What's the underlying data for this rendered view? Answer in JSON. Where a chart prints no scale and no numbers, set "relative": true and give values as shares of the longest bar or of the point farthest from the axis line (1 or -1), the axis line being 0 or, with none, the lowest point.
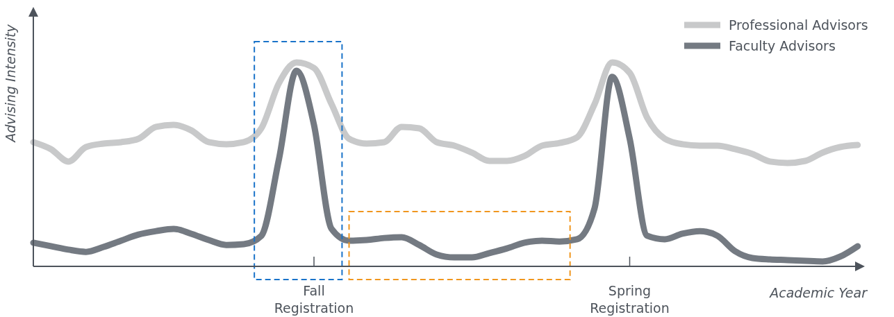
{
  "chart_data": {
    "type": "line",
    "relative": true,
    "xlabel": "Academic Year",
    "ylabel": "Advising Intensity",
    "legend": "top right",
    "line_style": "solid",
    "marker": "none",
    "grid": false,
    "tick_labels": "x",
    "categories": [
      null,
      null,
      null,
      null,
      null,
      null,
      null,
      null,
      null,
      null,
      null,
      null,
      null,
      null,
      null,
      null,
      "Fall Registration",
      null,
      null,
      null,
      null,
      null,
      null,
      null,
      null,
      null,
      null,
      null,
      null,
      null,
      null,
      null,
      null,
      null,
      "Spring Registration",
      null,
      null,
      null,
      null,
      null,
      null,
      null,
      null,
      null,
      null,
      null,
      null,
      null
    ],
    "series": [
      {
        "name": "Professional Advisors",
        "color": "#c8c9ca",
        "values": [
          0.609,
          0.575,
          0.514,
          0.585,
          0.602,
          0.609,
          0.626,
          0.684,
          0.694,
          0.667,
          0.609,
          0.599,
          0.609,
          0.677,
          0.898,
          1,
          0.973,
          0.796,
          0.626,
          0.602,
          0.609,
          0.684,
          0.677,
          0.609,
          0.592,
          0.558,
          0.517,
          0.517,
          0.541,
          0.592,
          0.605,
          0.633,
          0.796,
          1,
          0.949,
          0.728,
          0.626,
          0.599,
          0.592,
          0.592,
          0.575,
          0.551,
          0.514,
          0.507,
          0.517,
          0.558,
          0.585,
          0.595
        ]
      },
      {
        "name": "Faculty Advisors",
        "color": "#747a82",
        "values": [
          0.116,
          0.099,
          0.082,
          0.071,
          0.095,
          0.126,
          0.156,
          0.173,
          0.184,
          0.16,
          0.129,
          0.105,
          0.109,
          0.15,
          0.524,
          0.959,
          0.694,
          0.184,
          0.126,
          0.129,
          0.139,
          0.143,
          0.105,
          0.058,
          0.044,
          0.044,
          0.065,
          0.088,
          0.116,
          0.126,
          0.122,
          0.133,
          0.286,
          0.929,
          0.626,
          0.15,
          0.133,
          0.16,
          0.173,
          0.15,
          0.075,
          0.041,
          0.034,
          0.031,
          0.027,
          0.024,
          0.048,
          0.099
        ]
      }
    ]
  }
}
